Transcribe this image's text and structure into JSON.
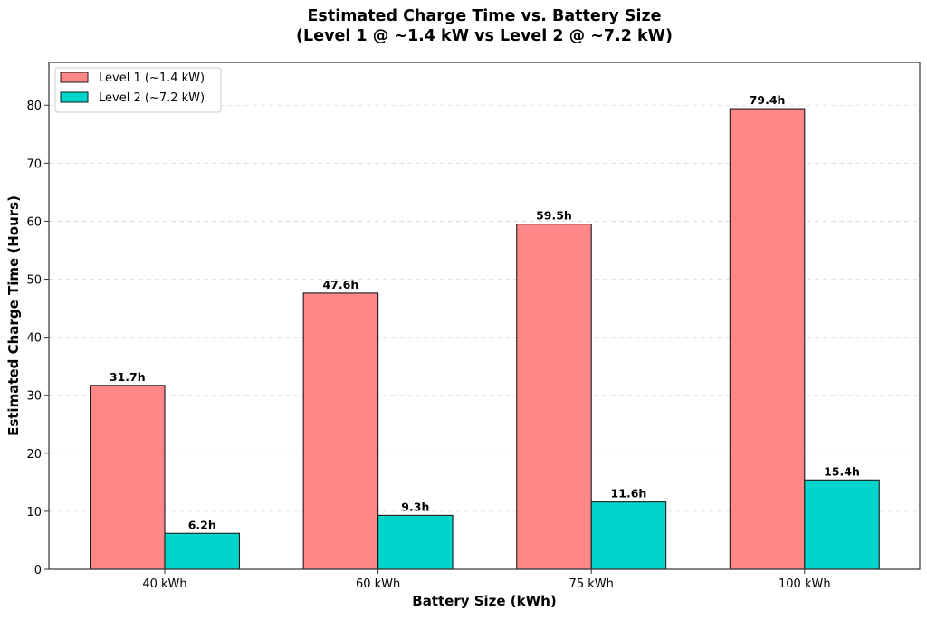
{
  "chart_data": {
    "type": "bar",
    "title_line1": "Estimated Charge Time vs. Battery Size",
    "title_line2": "(Level 1 @ ~1.4 kW vs Level 2 @ ~7.2 kW)",
    "xlabel": "Battery Size (kWh)",
    "ylabel": "Estimated Charge Time (Hours)",
    "categories": [
      "40 kWh",
      "60 kWh",
      "75 kWh",
      "100 kWh"
    ],
    "series": [
      {
        "name": "Level 1 (~1.4 kW)",
        "values": [
          31.7,
          47.6,
          59.5,
          79.4
        ],
        "labels": [
          "31.7h",
          "47.6h",
          "59.5h",
          "79.4h"
        ],
        "color": "#FF8787"
      },
      {
        "name": "Level 2 (~7.2 kW)",
        "values": [
          6.2,
          9.3,
          11.6,
          15.4
        ],
        "labels": [
          "6.2h",
          "9.3h",
          "11.6h",
          "15.4h"
        ],
        "color": "#00D5CC"
      }
    ],
    "ylim": [
      0,
      87.37
    ],
    "yticks": [
      0,
      10,
      20,
      30,
      40,
      50,
      60,
      70,
      80
    ],
    "grid": true,
    "legend_position": "top-left"
  }
}
